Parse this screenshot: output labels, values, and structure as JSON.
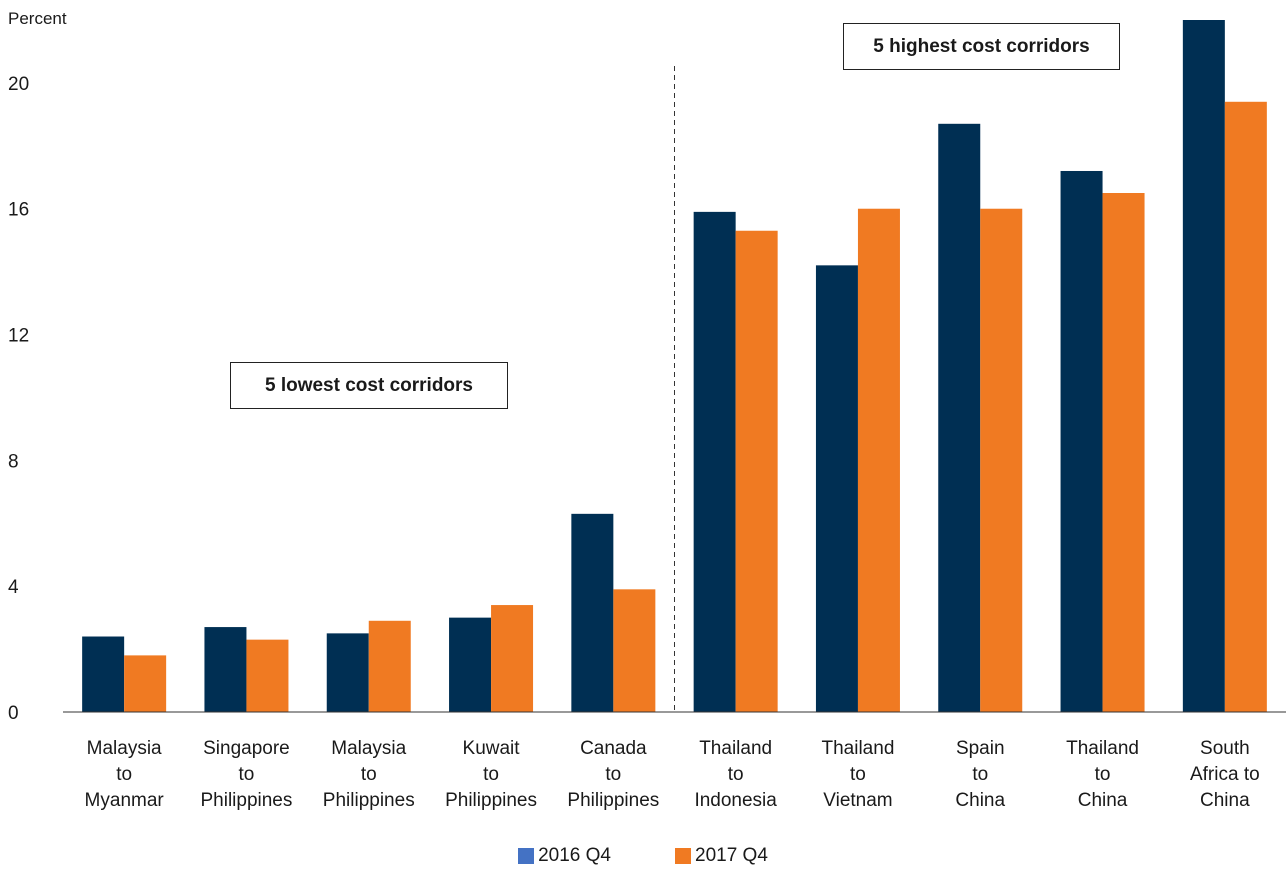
{
  "chart_data": {
    "type": "bar",
    "ylabel": "Percent",
    "ylim": [
      0,
      22
    ],
    "yticks": [
      0,
      4,
      8,
      12,
      16,
      20
    ],
    "categories": [
      [
        "Malaysia",
        "to",
        "Myanmar"
      ],
      [
        "Singapore",
        "to",
        "Philippines"
      ],
      [
        "Malaysia",
        "to",
        "Philippines"
      ],
      [
        "Kuwait",
        "to",
        "Philippines"
      ],
      [
        "Canada",
        "to",
        "Philippines"
      ],
      [
        "Thailand",
        "to",
        "Indonesia"
      ],
      [
        "Thailand",
        "to",
        "Vietnam"
      ],
      [
        "Spain",
        "to",
        "China"
      ],
      [
        "Thailand",
        "to",
        "China"
      ],
      [
        "South",
        "Africa to",
        "China"
      ]
    ],
    "series": [
      {
        "name": "2016 Q4",
        "color": "#002f53",
        "legend_color": "#4472c4",
        "values": [
          2.4,
          2.7,
          2.5,
          3.0,
          6.3,
          15.9,
          14.2,
          18.7,
          17.2,
          22.0
        ]
      },
      {
        "name": "2017 Q4",
        "color": "#f07a22",
        "legend_color": "#f07a22",
        "values": [
          1.8,
          2.3,
          2.9,
          3.4,
          3.9,
          15.3,
          16.0,
          16.0,
          16.5,
          19.4
        ]
      }
    ],
    "divider_after_index": 4,
    "annotations": [
      {
        "text": "5 lowest cost corridors"
      },
      {
        "text": "5 highest cost corridors"
      }
    ],
    "grid": false,
    "legend_position": "bottom-center"
  }
}
